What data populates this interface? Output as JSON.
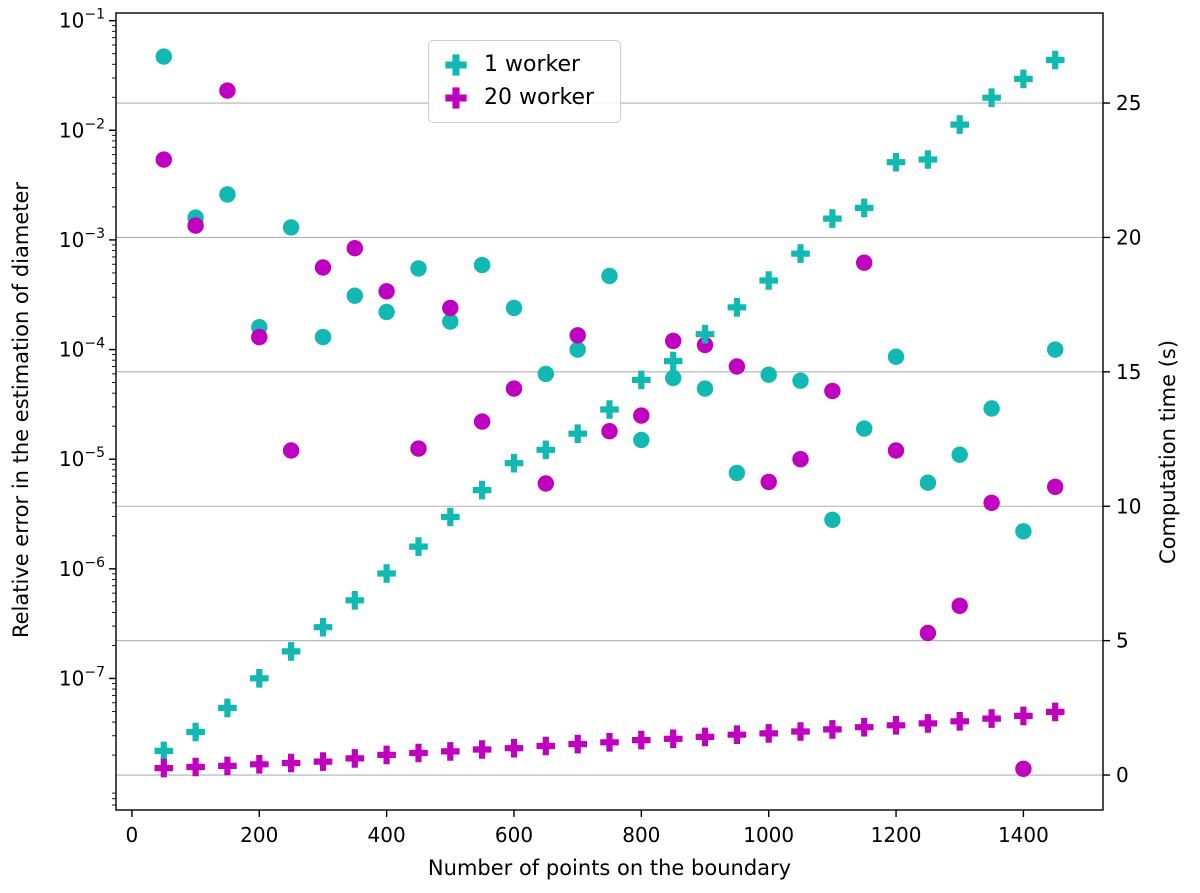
{
  "figure": {
    "background": "#ffffff"
  },
  "chart_data": {
    "type": "scatter",
    "title": "",
    "xlabel": "Number of points on the boundary",
    "ylabel_left": "Relative error in the estimation of diameter",
    "ylabel_right": "Computation time (s)",
    "grid": {
      "axis": "right",
      "color": "#b0b0b0",
      "on": true
    },
    "x_axis": {
      "min": -25,
      "max": 1525,
      "ticks": [
        0,
        200,
        400,
        600,
        800,
        1000,
        1200,
        1400
      ]
    },
    "left_axis": {
      "scale": "log",
      "min_exp": -8.2,
      "max_exp": -0.93,
      "tick_exps": [
        -1,
        -2,
        -3,
        -4,
        -5,
        -6,
        -7
      ]
    },
    "right_axis": {
      "scale": "linear",
      "min": -1.3,
      "max": 28.35,
      "ticks": [
        0,
        5,
        10,
        15,
        20,
        25
      ]
    },
    "legend": {
      "position": "upper center",
      "entries": [
        {
          "label": "1 worker",
          "color": "#12b8b2",
          "marker": "plus"
        },
        {
          "label": "20 worker",
          "color": "#bf00bf",
          "marker": "plus"
        }
      ]
    },
    "x": [
      50,
      100,
      150,
      200,
      250,
      300,
      350,
      400,
      450,
      500,
      550,
      600,
      650,
      700,
      750,
      800,
      850,
      900,
      950,
      1000,
      1050,
      1100,
      1150,
      1200,
      1250,
      1300,
      1350,
      1400,
      1450
    ],
    "series": [
      {
        "name": "1 worker",
        "quantity": "relative_error",
        "marker": "circle",
        "axis": "left",
        "color": "#12b8b2",
        "y": [
          0.047,
          0.0016,
          0.0026,
          0.00016,
          0.0013,
          0.00013,
          0.00031,
          0.00022,
          0.00055,
          0.00018,
          0.00059,
          0.00024,
          6e-05,
          0.0001,
          0.00047,
          1.5e-05,
          5.5e-05,
          4.4e-05,
          7.5e-06,
          5.9e-05,
          5.2e-05,
          2.8e-06,
          1.9e-05,
          8.6e-05,
          6.1e-06,
          1.1e-05,
          2.9e-05,
          2.2e-06,
          0.0001
        ]
      },
      {
        "name": "20 worker",
        "quantity": "relative_error",
        "marker": "circle",
        "axis": "left",
        "color": "#bf00bf",
        "y": [
          0.0054,
          0.00135,
          0.023,
          0.00013,
          1.2e-05,
          0.00056,
          0.00084,
          0.00034,
          1.25e-05,
          0.00024,
          2.2e-05,
          4.4e-05,
          6e-06,
          0.000135,
          1.8e-05,
          2.5e-05,
          0.00012,
          0.00011,
          7e-05,
          6.2e-06,
          1e-05,
          4.2e-05,
          0.00062,
          1.2e-05,
          2.6e-07,
          4.6e-07,
          4e-06,
          1.5e-08,
          5.6e-06
        ]
      },
      {
        "name": "1 worker",
        "quantity": "computation_time",
        "marker": "plus",
        "axis": "right",
        "color": "#12b8b2",
        "y": [
          0.9,
          1.6,
          2.5,
          3.6,
          4.6,
          5.5,
          6.5,
          7.5,
          8.5,
          9.6,
          10.6,
          11.6,
          12.1,
          12.7,
          13.6,
          14.7,
          15.4,
          16.4,
          17.4,
          18.4,
          19.4,
          20.7,
          21.1,
          22.8,
          22.9,
          24.2,
          25.2,
          25.9,
          26.6
        ]
      },
      {
        "name": "20 worker",
        "quantity": "computation_time",
        "marker": "plus",
        "axis": "right",
        "color": "#bf00bf",
        "y": [
          0.26,
          0.3,
          0.34,
          0.4,
          0.45,
          0.5,
          0.62,
          0.75,
          0.82,
          0.88,
          0.95,
          1.0,
          1.08,
          1.15,
          1.22,
          1.3,
          1.35,
          1.42,
          1.5,
          1.55,
          1.62,
          1.7,
          1.78,
          1.85,
          1.92,
          2.0,
          2.1,
          2.2,
          2.35
        ]
      }
    ]
  }
}
